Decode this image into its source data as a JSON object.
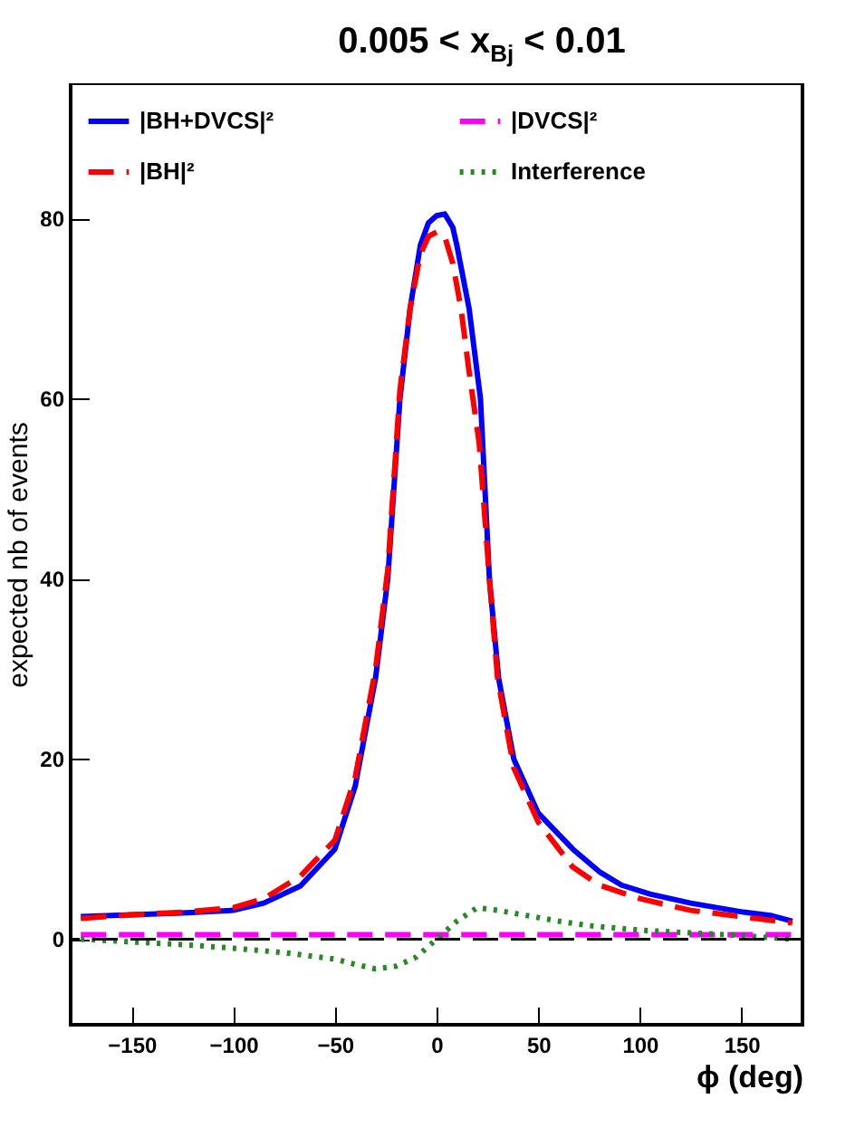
{
  "chart_data": {
    "type": "line",
    "title": "0.005 < x$_{Bj}$ < 0.01",
    "xlabel": "ϕ (deg)",
    "ylabel": "expected nb of events",
    "xlim": [
      -180,
      180
    ],
    "xticks": [
      -150,
      -100,
      -50,
      0,
      50,
      100,
      150
    ],
    "ylim": [
      -9.5,
      95
    ],
    "yticks": [
      0,
      20,
      40,
      60,
      80
    ],
    "legend": "top",
    "grid": false,
    "ref_lines": [
      {
        "axis": "y",
        "value": 0,
        "color": "#000000",
        "line_style": "dashed"
      }
    ],
    "series": [
      {
        "name": "|BH+DVCS|²",
        "color": "#0000ff",
        "line_style": "solid",
        "x": [
          -175,
          -150,
          -125,
          -100,
          -85,
          -67,
          -50,
          -40,
          -30,
          -24,
          -18,
          -13,
          -8,
          -4,
          0,
          4,
          8,
          10,
          16,
          21.6,
          26,
          30.5,
          38,
          50,
          67,
          80,
          91,
          105,
          125,
          151,
          165,
          175
        ],
        "values": [
          2.5,
          2.7,
          2.9,
          3.2,
          4,
          5.9,
          10,
          17,
          29,
          40,
          60,
          70,
          77,
          79.5,
          80.3,
          80.5,
          79,
          77,
          70,
          60,
          40,
          29,
          20,
          14,
          10,
          7.5,
          6,
          5,
          4,
          3,
          2.6,
          2
        ]
      },
      {
        "name": "|BH|²",
        "color": "#ff0000",
        "line_style": "dashed",
        "x": [
          -175,
          -150,
          -125,
          -100,
          -85,
          -67,
          -50,
          -40,
          -30,
          -24,
          -18,
          -13,
          -8,
          -4,
          0,
          4,
          8,
          12,
          16,
          21,
          26,
          30,
          38,
          50,
          67,
          80,
          100,
          125,
          150,
          175
        ],
        "values": [
          2.3,
          2.7,
          3,
          3.5,
          4.5,
          7,
          11,
          18,
          30,
          41,
          61,
          70,
          76,
          78,
          78.5,
          78,
          75,
          70,
          63,
          55,
          40,
          29,
          19,
          13,
          8,
          6,
          4.5,
          3.2,
          2.5,
          1.8
        ]
      },
      {
        "name": "|DVCS|²",
        "color": "#ff00ff",
        "line_style": "dashed",
        "x": [
          -175,
          -100,
          0,
          100,
          175
        ],
        "values": [
          0.5,
          0.5,
          0.5,
          0.5,
          0.5
        ]
      },
      {
        "name": "Interference",
        "color": "#228b22",
        "line_style": "dotted",
        "x": [
          -175,
          -150,
          -125,
          -100,
          -75,
          -50,
          -40,
          -30,
          -20,
          -10,
          0,
          10,
          20,
          30,
          40,
          60,
          75,
          100,
          125,
          150,
          175
        ],
        "values": [
          0,
          -0.3,
          -0.6,
          -1,
          -1.5,
          -2.2,
          -2.8,
          -3.3,
          -3,
          -2,
          0,
          2,
          3.5,
          3.2,
          2.8,
          2,
          1.5,
          1,
          0.7,
          0.4,
          0
        ]
      }
    ]
  }
}
